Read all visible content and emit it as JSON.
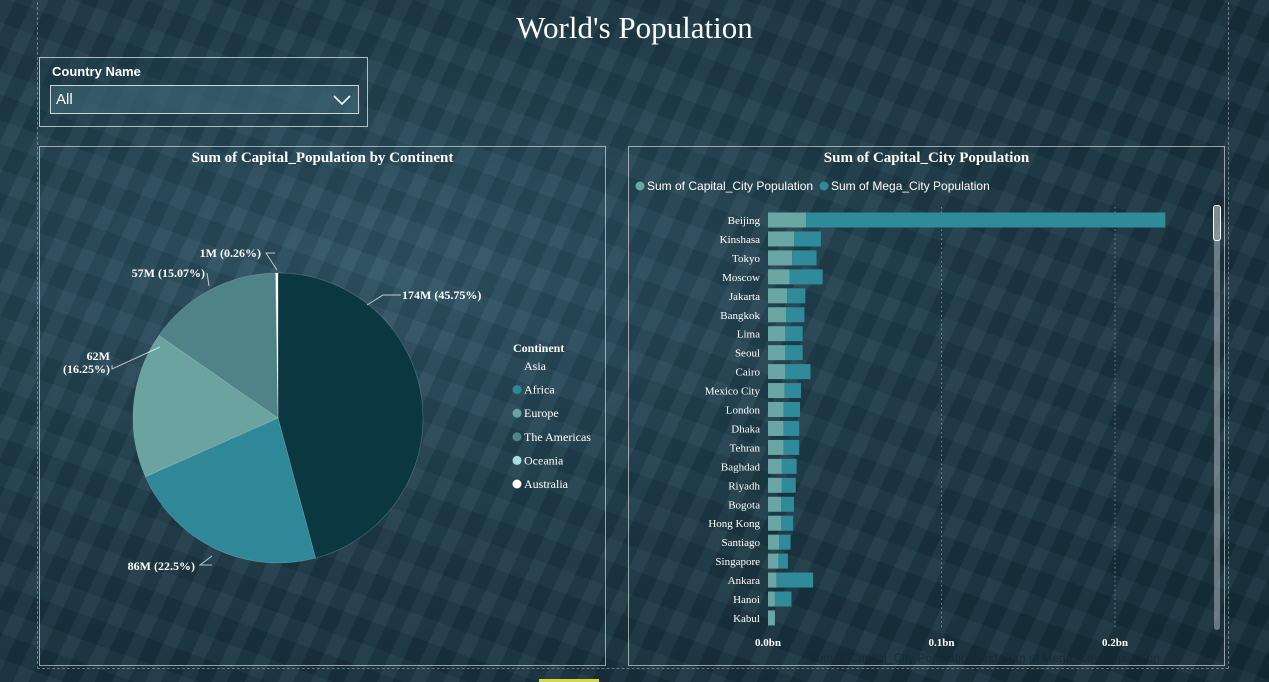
{
  "page": {
    "title": "World's Population"
  },
  "slicer": {
    "label": "Country Name",
    "value": "All"
  },
  "colors": {
    "asia": "#0b3740",
    "africa": "#2e8898",
    "europe": "#6aa3a0",
    "americas": "#4f8388",
    "oceania": "#a9dde0",
    "australia": "#ffffff",
    "capital_bar": "#6aa7a4",
    "mega_bar": "#2f8a99"
  },
  "chart_data": [
    {
      "type": "pie",
      "title": "Sum of Capital_Population by Continent",
      "legend_title": "Continent",
      "legend_position": "right",
      "slices": [
        {
          "label": "Asia",
          "value": 174,
          "percent": 45.75,
          "display": "174M (45.75%)",
          "color_key": "asia"
        },
        {
          "label": "Africa",
          "value": 86,
          "percent": 22.5,
          "display": "86M (22.5%)",
          "color_key": "africa"
        },
        {
          "label": "Europe",
          "value": 62,
          "percent": 16.25,
          "display_lines": [
            "62M",
            "(16.25%)"
          ],
          "color_key": "europe"
        },
        {
          "label": "The Americas",
          "value": 57,
          "percent": 15.07,
          "display": "57M (15.07%)",
          "color_key": "americas"
        },
        {
          "label": "Oceania",
          "value": 0,
          "percent": 0.0,
          "color_key": "oceania"
        },
        {
          "label": "Australia",
          "value": 1,
          "percent": 0.26,
          "display": "1M (0.26%)",
          "color_key": "australia"
        }
      ]
    },
    {
      "type": "bar",
      "orientation": "horizontal",
      "stacked": true,
      "title": "Sum of Capital_City Population",
      "xlabel": "Sum of Capital_City Population and Sum of Mega_City Population",
      "xlim": [
        0,
        0.26
      ],
      "x_ticks": [
        "0.0bn",
        "0.1bn",
        "0.2bn"
      ],
      "x_tick_values": [
        0,
        0.1,
        0.2
      ],
      "grid": true,
      "legend_position": "top-left",
      "categories": [
        "Beijing",
        "Kinshasa",
        "Tokyo",
        "Moscow",
        "Jakarta",
        "Bangkok",
        "Lima",
        "Seoul",
        "Cairo",
        "Mexico City",
        "London",
        "Dhaka",
        "Tehran",
        "Baghdad",
        "Riyadh",
        "Bogota",
        "Hong Kong",
        "Santiago",
        "Singapore",
        "Ankara",
        "Hanoi",
        "Kabul"
      ],
      "series": [
        {
          "name": "Sum of Capital_City Population",
          "color_key": "capital_bar",
          "values": [
            0.022,
            0.015,
            0.014,
            0.0125,
            0.011,
            0.0105,
            0.01,
            0.01,
            0.01,
            0.0095,
            0.009,
            0.009,
            0.009,
            0.008,
            0.008,
            0.0075,
            0.0075,
            0.0065,
            0.006,
            0.005,
            0.004,
            0.004
          ]
        },
        {
          "name": "Sum of Mega_City Population",
          "color_key": "mega_bar",
          "values": [
            0.207,
            0.0155,
            0.014,
            0.019,
            0.0105,
            0.0105,
            0.01,
            0.01,
            0.0145,
            0.0095,
            0.0095,
            0.009,
            0.009,
            0.0085,
            0.008,
            0.0075,
            0.007,
            0.0065,
            0.0055,
            0.021,
            0.0095,
            0.0
          ]
        }
      ]
    }
  ]
}
